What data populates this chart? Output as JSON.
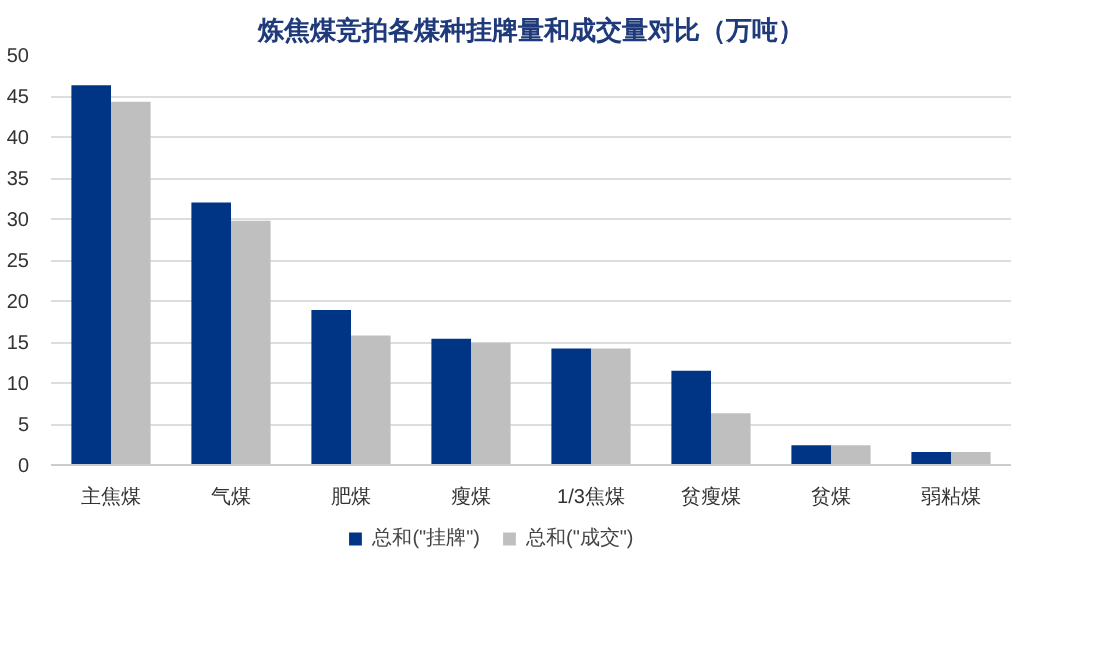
{
  "chart_data": {
    "type": "bar",
    "title": "炼焦煤竞拍各煤种挂牌量和成交量对比（万吨）",
    "categories": [
      "主焦煤",
      "气煤",
      "肥煤",
      "瘦煤",
      "1/3焦煤",
      "贫瘦煤",
      "贫煤",
      "弱粘煤"
    ],
    "series": [
      {
        "name": "总和(\"挂牌\")",
        "color": "#003585",
        "values": [
          46.3,
          32.0,
          18.9,
          15.4,
          14.2,
          11.5,
          2.4,
          1.6
        ]
      },
      {
        "name": "总和(\"成交\")",
        "color": "#bfbfbf",
        "values": [
          44.3,
          29.8,
          15.8,
          14.9,
          14.2,
          6.3,
          2.4,
          1.6
        ]
      }
    ],
    "ylim": [
      0,
      50
    ],
    "yticks": [
      0,
      5,
      10,
      15,
      20,
      25,
      30,
      35,
      40,
      45,
      50
    ],
    "grid": "y",
    "legend": "bottom"
  }
}
